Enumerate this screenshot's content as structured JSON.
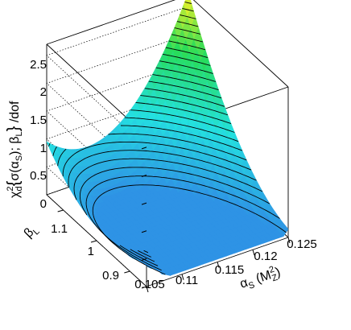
{
  "chart_data": {
    "type": "surface3d",
    "title": "",
    "zlabel": "χ²_d{ σ(α_S); β_L } /dof",
    "zlabel_parts": {
      "chi": "χ",
      "sup2": "2",
      "subd": "d",
      "open": "{",
      "sigma": "σ(α",
      "subS": "S",
      "mid": "); β",
      "subL": "L",
      "close": "}",
      "tail": " /dof"
    },
    "xlabel_parts": {
      "alpha": "α",
      "subS": "S",
      "open": " (M",
      "sup2": "2",
      "subZ": "Z",
      "close": ")"
    },
    "ylabel_parts": {
      "beta": "β",
      "subL": "L"
    },
    "x_ticks": [
      "0.105",
      "0.11",
      "0.115",
      "0.12",
      "0.125"
    ],
    "y_ticks": [
      "0.9",
      "1",
      "1.1"
    ],
    "z_ticks": [
      "0",
      "0.5",
      "1",
      "1.5",
      "2",
      "2.5"
    ],
    "xlim": [
      0.105,
      0.125
    ],
    "ylim": [
      0.85,
      1.15
    ],
    "zlim": [
      0,
      2.7
    ],
    "minimum": {
      "alpha_s": 0.118,
      "beta_l": 1.0,
      "chi2_per_dof": 0.05
    },
    "corners": [
      {
        "alpha_s": 0.105,
        "beta_l": 0.85,
        "chi2_per_dof": 0.6
      },
      {
        "alpha_s": 0.125,
        "beta_l": 0.85,
        "chi2_per_dof": 0.1
      },
      {
        "alpha_s": 0.125,
        "beta_l": 1.15,
        "chi2_per_dof": 2.7
      },
      {
        "alpha_s": 0.105,
        "beta_l": 1.15,
        "chi2_per_dof": 0.9
      }
    ],
    "colors": {
      "low": "#2f8fe5",
      "mid": "#24e0e0",
      "high": "#f2f226",
      "contour": "#000000"
    }
  }
}
